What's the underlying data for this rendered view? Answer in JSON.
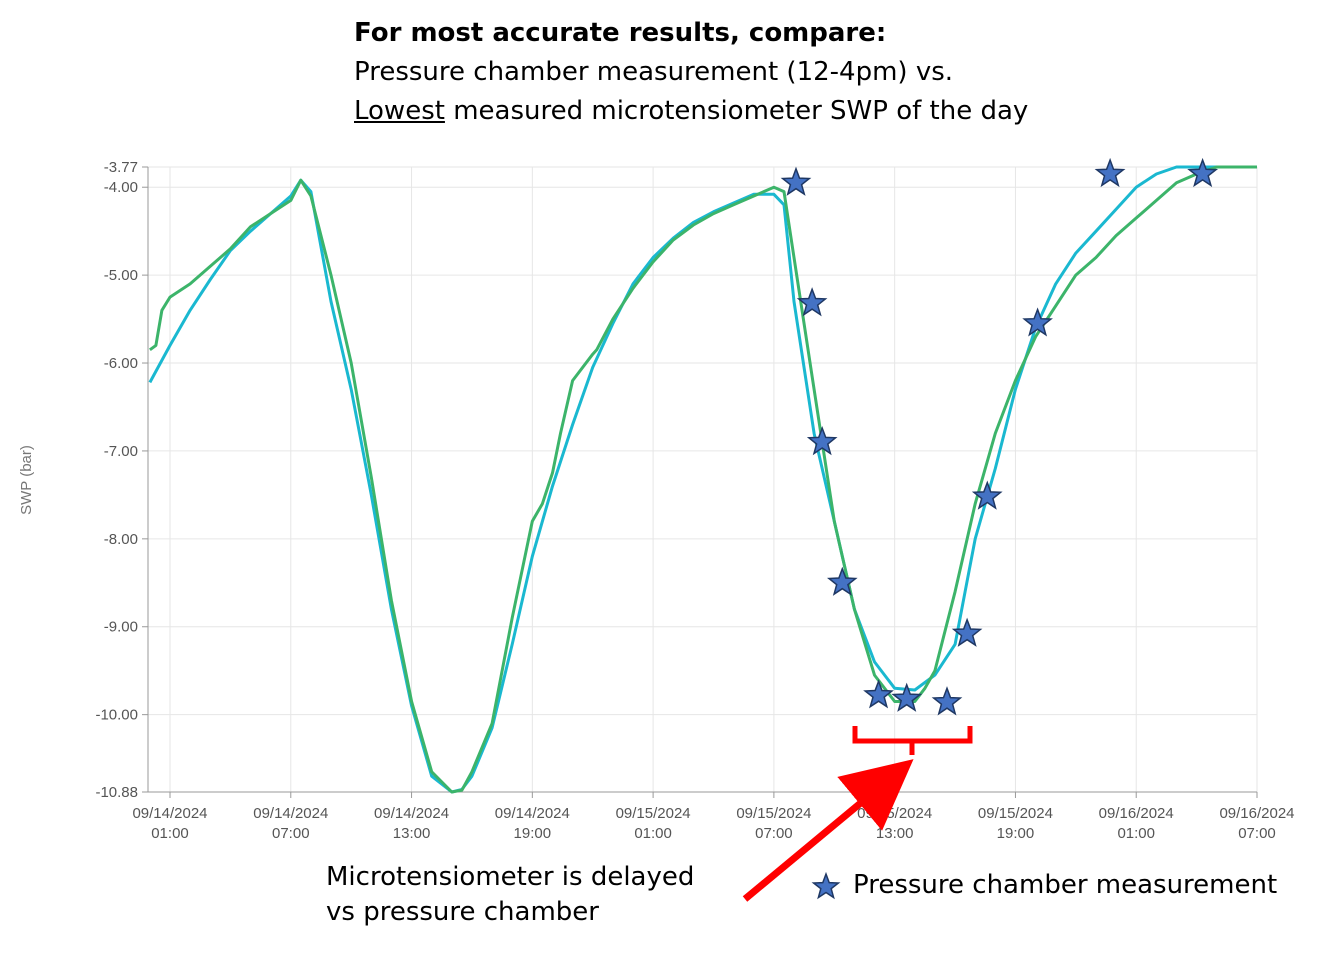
{
  "header": {
    "line1": "For most accurate results, compare:",
    "line2": "Pressure chamber measurement (12-4pm) vs.",
    "line3_underlined": "Lowest",
    "line3_rest": " measured microtensiometer SWP of the day"
  },
  "annotation": {
    "line1": "Microtensiometer is delayed",
    "line2": "vs pressure chamber"
  },
  "colors": {
    "teal": "#1ab8d0",
    "green": "#3cb46a",
    "star_fill": "#4472c4",
    "star_stroke": "#1f3864",
    "annotation": "#ff0000",
    "grid": "#e6e6e6"
  },
  "chart_data": {
    "type": "line",
    "ylabel": "SWP (bar)",
    "ylim": [
      -10.88,
      -3.77
    ],
    "yticks": [
      -3.77,
      -4.0,
      -5.0,
      -6.0,
      -7.0,
      -8.0,
      -9.0,
      -10.0,
      -10.88
    ],
    "ytick_labels": [
      "-3.77",
      "-4.00",
      "-5.00",
      "-6.00",
      "-7.00",
      "-8.00",
      "-9.00",
      "-10.00",
      "-10.88"
    ],
    "x_unit": "hours from 09/14/2024 00:00",
    "xlim": [
      0,
      55
    ],
    "xticks": [
      {
        "x": 1,
        "date": "09/14/2024",
        "time": "01:00"
      },
      {
        "x": 7,
        "date": "09/14/2024",
        "time": "07:00"
      },
      {
        "x": 13,
        "date": "09/14/2024",
        "time": "13:00"
      },
      {
        "x": 19,
        "date": "09/14/2024",
        "time": "19:00"
      },
      {
        "x": 25,
        "date": "09/15/2024",
        "time": "01:00"
      },
      {
        "x": 31,
        "date": "09/15/2024",
        "time": "07:00"
      },
      {
        "x": 37,
        "date": "09/15/2024",
        "time": "13:00"
      },
      {
        "x": 43,
        "date": "09/15/2024",
        "time": "19:00"
      },
      {
        "x": 49,
        "date": "09/16/2024",
        "time": "01:00"
      },
      {
        "x": 55,
        "date": "09/16/2024",
        "time": "07:00"
      }
    ],
    "series": [
      {
        "color": "teal",
        "x": [
          0,
          1,
          2,
          3,
          4,
          5,
          6,
          7,
          7.5,
          8,
          9,
          10,
          11,
          12,
          13,
          14,
          15,
          15.5,
          16,
          17,
          18,
          19,
          20,
          21,
          22,
          23,
          24,
          25,
          26,
          27,
          28,
          29,
          30,
          31,
          31.5,
          32,
          33,
          34,
          35,
          36,
          37,
          38,
          39,
          40,
          40.5,
          41,
          42,
          43,
          44,
          45,
          46,
          47,
          48,
          49,
          50,
          51,
          52,
          53,
          54,
          55
        ],
        "y": [
          -6.22,
          -5.8,
          -5.4,
          -5.05,
          -4.72,
          -4.5,
          -4.3,
          -4.1,
          -3.92,
          -4.05,
          -5.3,
          -6.3,
          -7.5,
          -8.8,
          -9.9,
          -10.7,
          -10.88,
          -10.85,
          -10.7,
          -10.15,
          -9.2,
          -8.2,
          -7.4,
          -6.7,
          -6.05,
          -5.55,
          -5.1,
          -4.8,
          -4.58,
          -4.4,
          -4.28,
          -4.18,
          -4.08,
          -4.08,
          -4.2,
          -5.3,
          -6.8,
          -7.8,
          -8.8,
          -9.4,
          -9.7,
          -9.72,
          -9.55,
          -9.2,
          -8.6,
          -8.0,
          -7.2,
          -6.3,
          -5.6,
          -5.1,
          -4.75,
          -4.5,
          -4.25,
          -4.0,
          -3.85,
          -3.77,
          -3.77,
          -3.77,
          -3.77,
          -3.77
        ]
      },
      {
        "color": "green",
        "x": [
          0,
          0.3,
          0.6,
          1,
          2,
          3,
          4,
          5,
          6,
          7,
          7.5,
          8,
          9,
          10,
          11,
          12,
          13,
          14,
          15,
          15.5,
          16,
          17,
          18,
          19,
          19.5,
          20,
          20.4,
          21,
          22,
          22.2,
          23,
          24,
          25,
          26,
          27,
          28,
          29,
          30,
          31,
          31.5,
          32,
          33,
          34,
          35,
          36,
          37,
          38,
          38.5,
          39,
          40,
          41,
          42,
          43,
          44,
          45,
          46,
          47,
          48,
          49,
          50,
          51,
          52,
          53,
          54,
          55
        ],
        "y": [
          -5.85,
          -5.8,
          -5.4,
          -5.25,
          -5.1,
          -4.9,
          -4.7,
          -4.45,
          -4.3,
          -4.15,
          -3.92,
          -4.1,
          -5.0,
          -6.0,
          -7.3,
          -8.7,
          -9.85,
          -10.65,
          -10.88,
          -10.86,
          -10.65,
          -10.1,
          -8.9,
          -7.8,
          -7.6,
          -7.25,
          -6.8,
          -6.2,
          -5.9,
          -5.85,
          -5.5,
          -5.15,
          -4.85,
          -4.6,
          -4.43,
          -4.3,
          -4.2,
          -4.1,
          -4.0,
          -4.05,
          -4.8,
          -6.3,
          -7.8,
          -8.8,
          -9.55,
          -9.85,
          -9.85,
          -9.7,
          -9.5,
          -8.6,
          -7.6,
          -6.8,
          -6.2,
          -5.7,
          -5.35,
          -5.0,
          -4.8,
          -4.55,
          -4.35,
          -4.15,
          -3.95,
          -3.85,
          -3.77,
          -3.77,
          -3.77
        ]
      }
    ],
    "pressure_chamber": {
      "legend": "Pressure chamber measurement",
      "x": [
        32.1,
        32.9,
        33.4,
        34.4,
        36.2,
        37.6,
        39.6,
        40.6,
        41.6,
        44.1,
        47.7,
        52.3
      ],
      "y": [
        -3.95,
        -5.32,
        -6.9,
        -8.5,
        -9.78,
        -9.82,
        -9.86,
        -9.08,
        -7.52,
        -5.55,
        -3.85,
        -3.85
      ]
    }
  }
}
